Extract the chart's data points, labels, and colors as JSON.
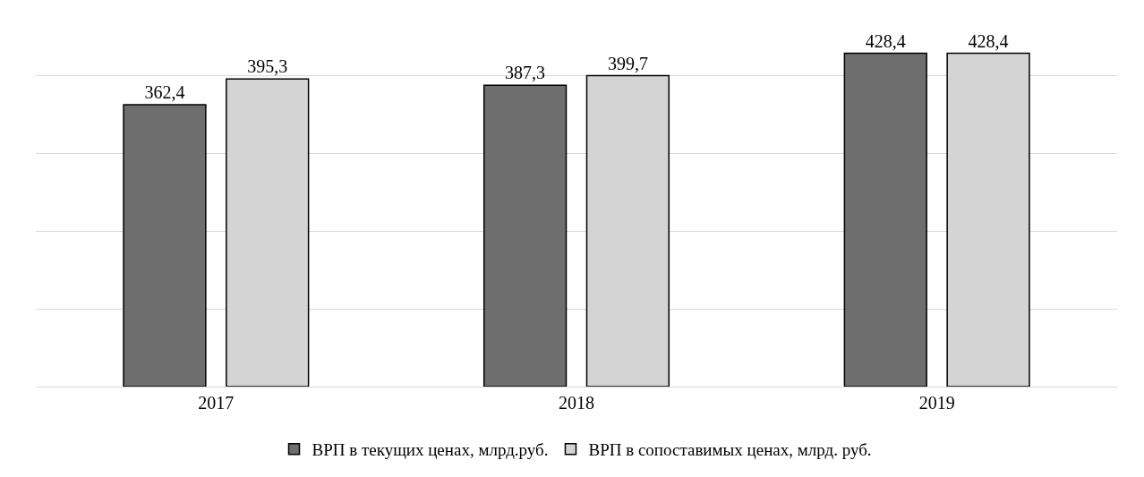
{
  "chart_data": {
    "type": "bar",
    "categories": [
      "2017",
      "2018",
      "2019"
    ],
    "series": [
      {
        "name": "ВРП в текущих ценах, млрд.руб.",
        "color": "#6e6e6e",
        "values": [
          362.4,
          387.3,
          428.4
        ],
        "value_labels": [
          "362,4",
          "387,3",
          "428,4"
        ]
      },
      {
        "name": "ВРП в сопоставимых ценах, млрд. руб.",
        "color": "#d4d4d4",
        "values": [
          395.3,
          399.7,
          428.4
        ],
        "value_labels": [
          "395,3",
          "399,7",
          "428,4"
        ]
      }
    ],
    "tick_labels": "x",
    "grid": "y",
    "legend": "bottom"
  }
}
